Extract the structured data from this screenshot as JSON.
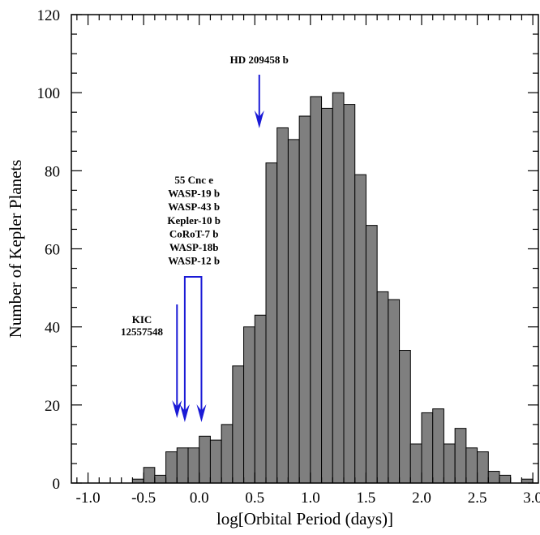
{
  "chart_data": {
    "type": "bar",
    "xlabel": "log[Orbital Period (days)]",
    "ylabel": "Number of Kepler Planets",
    "xlim": [
      -1.15,
      3.05
    ],
    "ylim": [
      0,
      120
    ],
    "x_ticks": [
      "-1.0",
      "-0.5",
      "0.0",
      "0.5",
      "1.0",
      "1.5",
      "2.0",
      "2.5",
      "3.0"
    ],
    "y_ticks": [
      "0",
      "20",
      "40",
      "60",
      "80",
      "100",
      "120"
    ],
    "bin_width": 0.1,
    "bin_left_edges": [
      -0.6,
      -0.5,
      -0.4,
      -0.3,
      -0.2,
      -0.1,
      0.0,
      0.1,
      0.2,
      0.3,
      0.4,
      0.5,
      0.6,
      0.7,
      0.8,
      0.9,
      1.0,
      1.1,
      1.2,
      1.3,
      1.4,
      1.5,
      1.6,
      1.7,
      1.8,
      1.9,
      2.0,
      2.1,
      2.2,
      2.3,
      2.4,
      2.5,
      2.6,
      2.7,
      2.8,
      2.9
    ],
    "values": [
      1,
      4,
      2,
      8,
      9,
      9,
      12,
      11,
      15,
      30,
      40,
      43,
      82,
      91,
      88,
      94,
      99,
      96,
      100,
      97,
      79,
      66,
      49,
      47,
      34,
      10,
      18,
      19,
      10,
      14,
      9,
      8,
      3,
      2,
      0,
      1
    ],
    "bar_color": "#7f7f7f",
    "arrow_color": "#1a1ad6",
    "annotations": [
      {
        "lines": [
          "HD 209458 b"
        ],
        "x": 0.54
      },
      {
        "lines": [
          "55 Cnc e",
          "WASP-19 b",
          "WASP-43 b",
          "Kepler-10 b",
          "CoRoT-7 b",
          "WASP-18b",
          "WASP-12 b"
        ],
        "x_range": [
          -0.13,
          0.02
        ]
      },
      {
        "lines": [
          "KIC",
          "12557548"
        ],
        "x": -0.2
      }
    ]
  }
}
